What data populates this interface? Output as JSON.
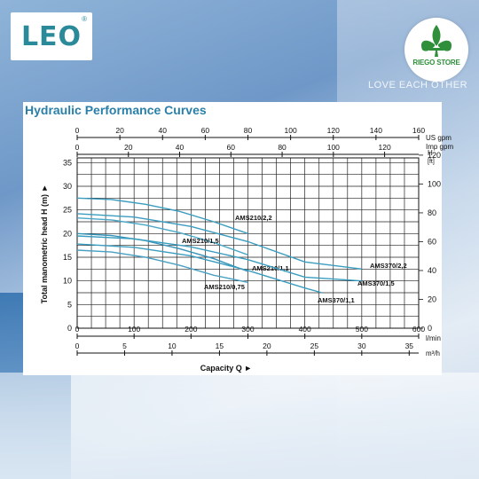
{
  "brand": {
    "logo_text": "LEO",
    "logo_mark": "®",
    "store_name": "RIEGO STORE",
    "banner": "LOVE EACH OTHER"
  },
  "chart_data": {
    "type": "line",
    "title": "Hydraulic Performance Curves",
    "xlabel": "Capacity Q",
    "ylabel": "Total manometric head H (m)",
    "y2label": "H [ft]",
    "axes": {
      "x_lmin": {
        "range": [
          0,
          600
        ],
        "ticks": [
          0,
          100,
          200,
          300,
          400,
          500,
          600
        ],
        "unit": "l/min"
      },
      "x_m3h": {
        "range": [
          0,
          36
        ],
        "ticks": [
          0,
          5,
          10,
          15,
          20,
          25,
          30,
          35
        ],
        "unit": "m³/h"
      },
      "x_usgpm": {
        "range": [
          0,
          160
        ],
        "ticks": [
          0,
          20,
          40,
          60,
          80,
          100,
          120,
          140,
          160
        ],
        "unit": "US gpm"
      },
      "x_impgpm": {
        "range": [
          0,
          133.3
        ],
        "ticks": [
          0,
          20,
          40,
          60,
          80,
          100,
          120
        ],
        "unit": "Imp gpm"
      },
      "y_m": {
        "range": [
          0,
          36
        ],
        "ticks": [
          0,
          5,
          10,
          15,
          20,
          25,
          30,
          35
        ]
      },
      "y_ft": {
        "range": [
          0,
          118.1
        ],
        "ticks": [
          0,
          20,
          40,
          60,
          80,
          100,
          120
        ]
      }
    },
    "grid": true,
    "series": [
      {
        "name": "AMS210/2,2",
        "x": [
          0,
          60,
          120,
          180,
          240,
          300
        ],
        "y": [
          27.5,
          27.2,
          26.2,
          24.7,
          22.5,
          20.0
        ]
      },
      {
        "name": "AMS210/1,5",
        "x": [
          0,
          60,
          120,
          180,
          240,
          300
        ],
        "y": [
          23.3,
          22.9,
          21.8,
          20.2,
          18.1,
          15.5
        ]
      },
      {
        "name": "AMS210/1,1",
        "x": [
          0,
          60,
          120,
          180,
          240,
          300
        ],
        "y": [
          20.0,
          19.6,
          18.5,
          16.8,
          14.7,
          12.0
        ]
      },
      {
        "name": "AMS210/0,75",
        "x": [
          0,
          60,
          120,
          180,
          240,
          300
        ],
        "y": [
          16.5,
          16.1,
          15.0,
          13.3,
          11.2,
          9.7
        ]
      },
      {
        "name": "AMS370/2,2",
        "x": [
          0,
          100,
          200,
          300,
          400,
          500
        ],
        "y": [
          24.2,
          23.5,
          21.5,
          18.3,
          14.0,
          12.5
        ]
      },
      {
        "name": "AMS370/1,5",
        "x": [
          0,
          100,
          200,
          300,
          400,
          500
        ],
        "y": [
          19.5,
          18.9,
          17.2,
          14.5,
          10.8,
          10.0
        ]
      },
      {
        "name": "AMS370/1,1",
        "x": [
          0,
          100,
          200,
          300,
          400,
          430
        ],
        "y": [
          17.8,
          17.1,
          15.3,
          12.2,
          8.5,
          7.5
        ]
      }
    ]
  }
}
